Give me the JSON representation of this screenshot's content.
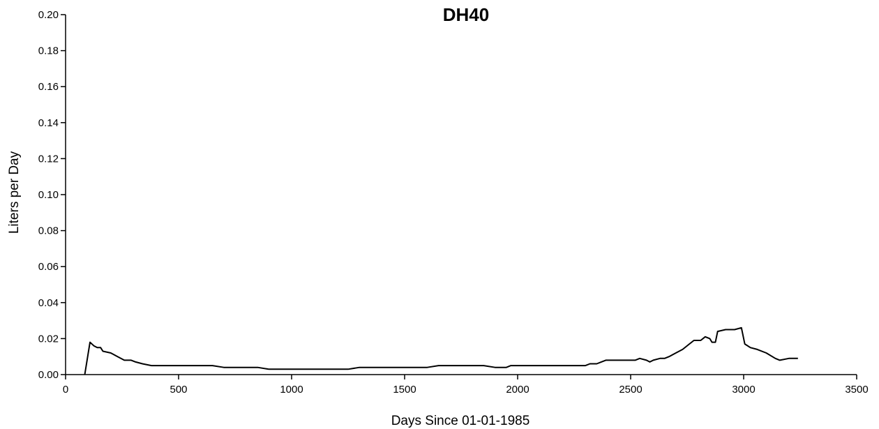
{
  "chart_data": {
    "type": "line",
    "title": "DH40",
    "xlabel": "Days Since 01-01-1985",
    "ylabel": "Liters per Day",
    "xlim": [
      0,
      3500
    ],
    "ylim": [
      0,
      0.2
    ],
    "x_ticks": [
      0,
      500,
      1000,
      1500,
      2000,
      2500,
      3000,
      3500
    ],
    "x_tick_labels": [
      "0",
      "500",
      "1000",
      "1500",
      "2000",
      "2500",
      "3000",
      "3500"
    ],
    "y_ticks": [
      0,
      0.02,
      0.04,
      0.06,
      0.08,
      0.1,
      0.12,
      0.14,
      0.16,
      0.18,
      0.2
    ],
    "y_tick_labels": [
      "0.00",
      "0.02",
      "0.04",
      "0.06",
      "0.08",
      "0.10",
      "0.12",
      "0.14",
      "0.16",
      "0.18",
      "0.20"
    ],
    "grid": false,
    "legend": "none",
    "series": [
      {
        "color": "#000000",
        "points": [
          [
            85,
            0.0
          ],
          [
            108,
            0.018
          ],
          [
            125,
            0.016
          ],
          [
            140,
            0.015
          ],
          [
            155,
            0.015
          ],
          [
            165,
            0.013
          ],
          [
            200,
            0.012
          ],
          [
            230,
            0.01
          ],
          [
            260,
            0.008
          ],
          [
            290,
            0.008
          ],
          [
            310,
            0.007
          ],
          [
            340,
            0.006
          ],
          [
            380,
            0.005
          ],
          [
            450,
            0.005
          ],
          [
            550,
            0.005
          ],
          [
            650,
            0.005
          ],
          [
            700,
            0.004
          ],
          [
            850,
            0.004
          ],
          [
            900,
            0.003
          ],
          [
            1000,
            0.003
          ],
          [
            1100,
            0.003
          ],
          [
            1150,
            0.003
          ],
          [
            1250,
            0.003
          ],
          [
            1300,
            0.004
          ],
          [
            1450,
            0.004
          ],
          [
            1600,
            0.004
          ],
          [
            1650,
            0.005
          ],
          [
            1700,
            0.005
          ],
          [
            1850,
            0.005
          ],
          [
            1900,
            0.004
          ],
          [
            1950,
            0.004
          ],
          [
            1970,
            0.005
          ],
          [
            2050,
            0.005
          ],
          [
            2100,
            0.005
          ],
          [
            2200,
            0.005
          ],
          [
            2300,
            0.005
          ],
          [
            2320,
            0.006
          ],
          [
            2350,
            0.006
          ],
          [
            2370,
            0.007
          ],
          [
            2390,
            0.008
          ],
          [
            2450,
            0.008
          ],
          [
            2520,
            0.008
          ],
          [
            2540,
            0.009
          ],
          [
            2570,
            0.008
          ],
          [
            2585,
            0.007
          ],
          [
            2600,
            0.008
          ],
          [
            2630,
            0.009
          ],
          [
            2650,
            0.009
          ],
          [
            2670,
            0.01
          ],
          [
            2700,
            0.012
          ],
          [
            2730,
            0.014
          ],
          [
            2760,
            0.017
          ],
          [
            2780,
            0.019
          ],
          [
            2810,
            0.019
          ],
          [
            2830,
            0.021
          ],
          [
            2850,
            0.02
          ],
          [
            2860,
            0.018
          ],
          [
            2875,
            0.018
          ],
          [
            2885,
            0.024
          ],
          [
            2920,
            0.025
          ],
          [
            2960,
            0.025
          ],
          [
            2990,
            0.026
          ],
          [
            3005,
            0.017
          ],
          [
            3030,
            0.015
          ],
          [
            3060,
            0.014
          ],
          [
            3100,
            0.012
          ],
          [
            3140,
            0.009
          ],
          [
            3160,
            0.008
          ],
          [
            3200,
            0.009
          ],
          [
            3240,
            0.009
          ]
        ]
      }
    ]
  }
}
